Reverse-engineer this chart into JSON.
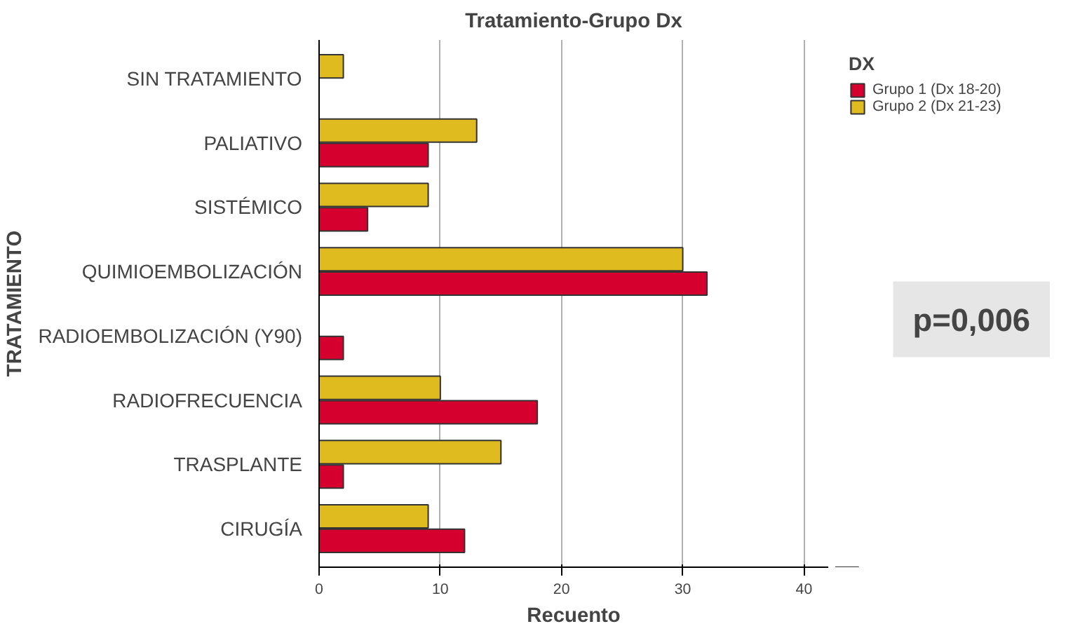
{
  "chart_data": {
    "type": "bar",
    "orientation": "horizontal",
    "title": "Tratamiento-Grupo Dx",
    "xlabel": "Recuento",
    "ylabel": "TRATAMIENTO",
    "legend_title": "DX",
    "categories": [
      "SIN TRATAMIENTO",
      "PALIATIVO",
      "SISTÉMICO",
      "QUIMIOEMBOLIZACIÓN",
      "RADIOEMBOLIZACIÓN (Y90)",
      "RADIOFRECUENCIA",
      "TRASPLANTE",
      "CIRUGÍA"
    ],
    "series": [
      {
        "name": "Grupo 1 (Dx 18-20)",
        "color": "#d6002f",
        "values": [
          null,
          9,
          4,
          32,
          2,
          18,
          2,
          12
        ]
      },
      {
        "name": "Grupo 2 (Dx 21-23)",
        "color": "#e0bb1f",
        "values": [
          2,
          13,
          9,
          30,
          null,
          10,
          15,
          9
        ]
      }
    ],
    "xlim": [
      0,
      42
    ],
    "xticks": [
      0,
      10,
      20,
      30,
      40
    ],
    "grid": "x",
    "legend": "top right",
    "annotations": [
      "p=0,006"
    ]
  }
}
